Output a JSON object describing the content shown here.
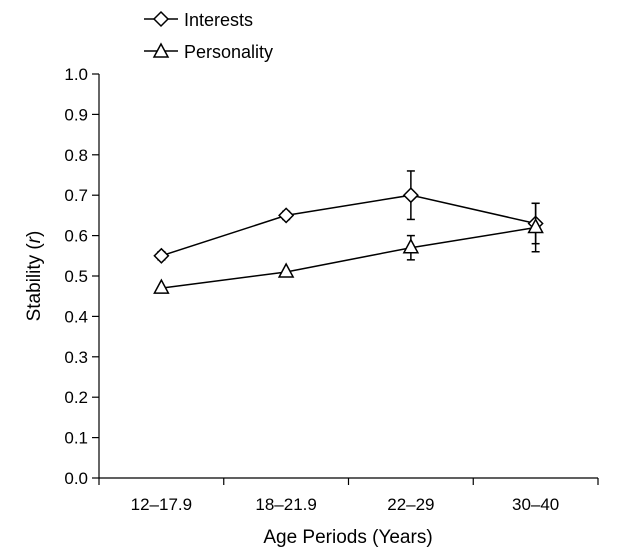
{
  "chart_data": {
    "type": "line",
    "title": "",
    "xlabel": "Age Periods (Years)",
    "ylabel_prefix": "Stability (",
    "ylabel_italic": "r",
    "ylabel_suffix": ")",
    "categories": [
      "12–17.9",
      "18–21.9",
      "22–29",
      "30–40"
    ],
    "ylim": [
      0,
      1.0
    ],
    "yticks": [
      "0.0",
      "0.1",
      "0.2",
      "0.3",
      "0.4",
      "0.5",
      "0.6",
      "0.7",
      "0.8",
      "0.9",
      "1.0"
    ],
    "grid": false,
    "legend_position": "top-left",
    "series": [
      {
        "name": "Interests",
        "marker": "diamond",
        "values": [
          0.55,
          0.65,
          0.7,
          0.63
        ],
        "error": [
          0.01,
          0.01,
          0.06,
          0.05
        ]
      },
      {
        "name": "Personality",
        "marker": "triangle",
        "values": [
          0.47,
          0.51,
          0.57,
          0.62
        ],
        "error": [
          0.0,
          0.0,
          0.03,
          0.06
        ]
      }
    ]
  }
}
